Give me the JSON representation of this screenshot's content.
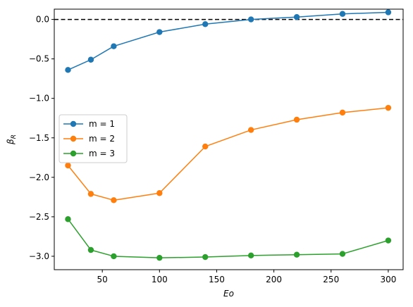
{
  "chart_data": {
    "type": "line",
    "title": "",
    "xlabel": "Eo",
    "ylabel": "β_R",
    "xlim": [
      8,
      313
    ],
    "ylim": [
      -3.17,
      0.13
    ],
    "xticks": [
      50,
      100,
      150,
      200,
      250,
      300
    ],
    "yticks": [
      0.0,
      -0.5,
      -1.0,
      -1.5,
      -2.0,
      -2.5,
      -3.0
    ],
    "xtick_labels": [
      "50",
      "100",
      "150",
      "200",
      "250",
      "300"
    ],
    "ytick_labels": [
      "0.0",
      "−0.5",
      "−1.0",
      "−1.5",
      "−2.0",
      "−2.5",
      "−3.0"
    ],
    "x": [
      20,
      40,
      60,
      100,
      140,
      180,
      220,
      260,
      300
    ],
    "reference_line": {
      "y": 0.0,
      "style": "dashed",
      "color": "#000000"
    },
    "legend_position": "center-left",
    "grid": false,
    "series": [
      {
        "name": "m = 1",
        "color": "#1f77b4",
        "values": [
          -0.64,
          -0.51,
          -0.34,
          -0.16,
          -0.06,
          0.0,
          0.03,
          0.07,
          0.09
        ]
      },
      {
        "name": "m = 2",
        "color": "#ff7f0e",
        "values": [
          -1.85,
          -2.21,
          -2.29,
          -2.2,
          -1.61,
          -1.4,
          -1.27,
          -1.18,
          -1.12
        ]
      },
      {
        "name": "m = 3",
        "color": "#2ca02c",
        "values": [
          -2.53,
          -2.92,
          -3.0,
          -3.02,
          -3.01,
          -2.99,
          -2.98,
          -2.97,
          -2.8
        ]
      }
    ]
  }
}
